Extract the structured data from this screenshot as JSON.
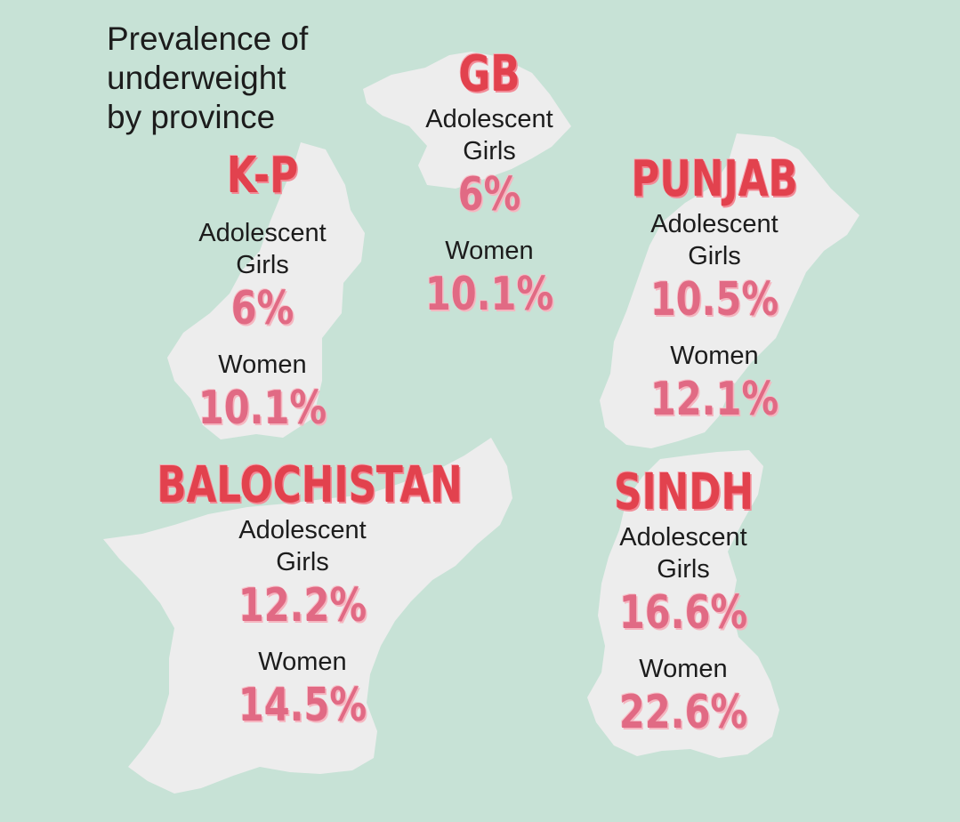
{
  "title": {
    "line1": "Prevalence of",
    "line2": "underweight",
    "line3": "by province"
  },
  "colors": {
    "background": "#c7e2d6",
    "province_fill": "#ededed",
    "province_name": "#e2424e",
    "value": "#e16a84",
    "label": "#1c1c1c"
  },
  "provinces": {
    "gb": {
      "name": "GB",
      "girls_label_1": "Adolescent",
      "girls_label_2": "Girls",
      "girls_value": "6%",
      "women_label": "Women",
      "women_value": "10.1%"
    },
    "kp": {
      "name": "K-P",
      "girls_label_1": "Adolescent",
      "girls_label_2": "Girls",
      "girls_value": "6%",
      "women_label": "Women",
      "women_value": "10.1%"
    },
    "punjab": {
      "name": "PUNJAB",
      "girls_label_1": "Adolescent",
      "girls_label_2": "Girls",
      "girls_value": "10.5%",
      "women_label": "Women",
      "women_value": "12.1%"
    },
    "balochistan": {
      "name": "BALOCHISTAN",
      "girls_label_1": "Adolescent",
      "girls_label_2": "Girls",
      "girls_value": "12.2%",
      "women_label": "Women",
      "women_value": "14.5%"
    },
    "sindh": {
      "name": "SINDH",
      "girls_label_1": "Adolescent",
      "girls_label_2": "Girls",
      "girls_value": "16.6%",
      "women_label": "Women",
      "women_value": "22.6%"
    }
  }
}
